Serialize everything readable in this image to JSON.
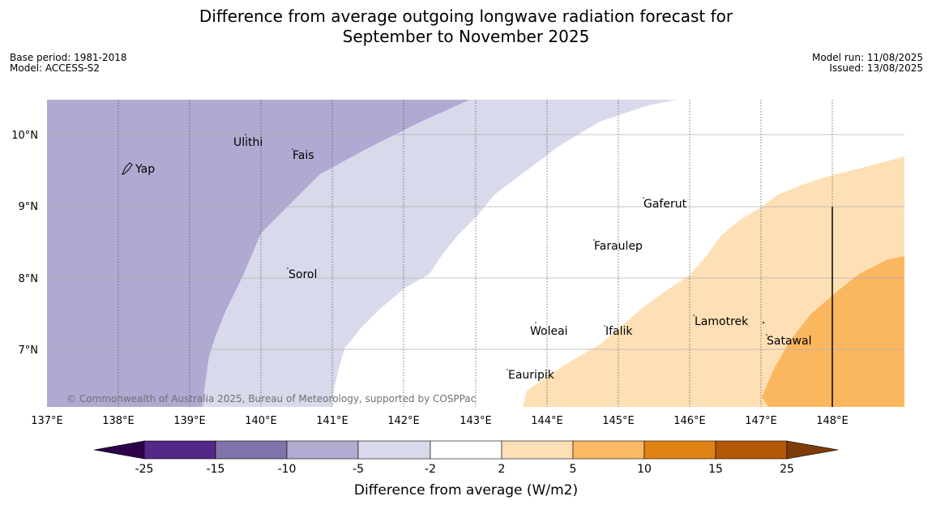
{
  "title": {
    "line1": "Difference from average outgoing longwave radiation forecast for",
    "line2": "September to November 2025"
  },
  "meta": {
    "base_period": "Base period: 1981-2018",
    "model": "Model: ACCESS-S2",
    "model_run": "Model run: 11/08/2025",
    "issued": "Issued: 13/08/2025"
  },
  "map": {
    "lon_labels": [
      "137°E",
      "138°E",
      "139°E",
      "140°E",
      "141°E",
      "142°E",
      "143°E",
      "144°E",
      "145°E",
      "146°E",
      "147°E",
      "148°E"
    ],
    "lat_labels": [
      "10°N",
      "9°N",
      "8°N",
      "7°N"
    ],
    "places": [
      "Yap",
      "Ulithi",
      "Fais",
      "Sorol",
      "Gaferut",
      "Faraulep",
      "Woleai",
      "Ifalik",
      "Lamotrek",
      "Satawal",
      "Eauripik"
    ],
    "copyright": "© Commonwealth of Australia 2025, Bureau of Meteorology, supported by COSPPac"
  },
  "legend": {
    "label": "Difference from average (W/m2)",
    "ticks": [
      "-25",
      "-15",
      "-10",
      "-5",
      "-2",
      "2",
      "5",
      "10",
      "15",
      "25"
    ],
    "colors": {
      "below_-25": "#2d004b",
      "-25_-15": "#542788",
      "-15_-10": "#8073ac",
      "-10_-5": "#b2abd2",
      "-5_-2": "#d8daeb",
      "-2_2": "#ffffff",
      "2_5": "#fee0b6",
      "5_10": "#fdb863",
      "10_15": "#e08214",
      "15_25": "#b35806",
      "above_25": "#7f3b08"
    }
  }
}
